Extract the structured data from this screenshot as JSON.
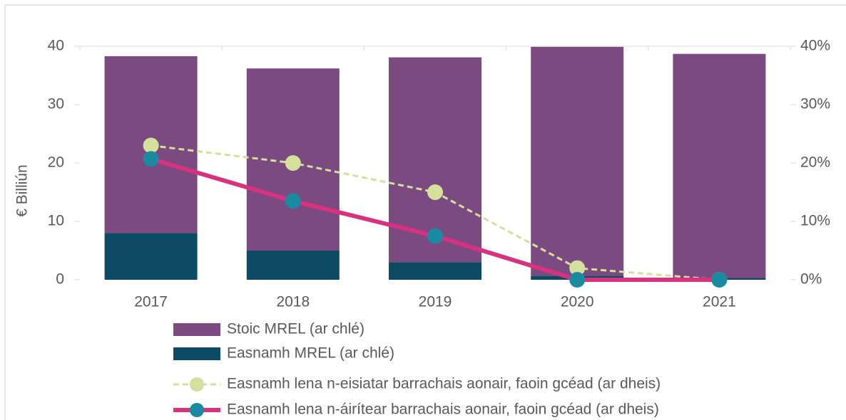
{
  "chart_data": {
    "type": "bar-line",
    "ylabel": "€ Billiún",
    "categories": [
      "2017",
      "2018",
      "2019",
      "2020",
      "2021"
    ],
    "series": [
      {
        "name": "Stoic MREL (ar chlé)",
        "type": "bar",
        "color": "#7b4a80",
        "values": [
          30.3,
          31.2,
          35.1,
          39.2,
          38.4
        ]
      },
      {
        "name": "Easnamh MREL (ar chlé)",
        "type": "bar",
        "color": "#0d4a63",
        "values": [
          8,
          5,
          3,
          0.7,
          0.3
        ]
      },
      {
        "name": "Easnamh lena n-eisiatar barrachais aonair, faoin gcéad (ar dheis)",
        "type": "line",
        "axis": "y2",
        "dashed": true,
        "color": "#d4e09b",
        "marker_color": "#d4e09b",
        "values": [
          23,
          20,
          15,
          2,
          0
        ]
      },
      {
        "name": "Easnamh lena n-áirítear barrachais aonair, faoin gcéad (ar dheis)",
        "type": "line",
        "axis": "y2",
        "dashed": false,
        "color": "#d6327f",
        "marker_color": "#1a8aa0",
        "values": [
          20.7,
          13.5,
          7.5,
          0,
          0
        ]
      }
    ],
    "ylim": [
      0,
      40
    ],
    "yticks": [
      0,
      10,
      20,
      30,
      40
    ],
    "y2lim": [
      0,
      40
    ],
    "y2ticks": [
      {
        "value": 0,
        "label": "0%"
      },
      {
        "value": 10,
        "label": "10%"
      },
      {
        "value": 20,
        "label": "20%"
      },
      {
        "value": 30,
        "label": "30%"
      },
      {
        "value": 40,
        "label": "40%"
      }
    ],
    "grid": false
  }
}
